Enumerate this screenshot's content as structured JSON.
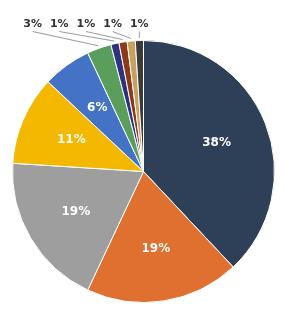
{
  "chart_data": {
    "type": "pie",
    "values": [
      38,
      19,
      19,
      11,
      6,
      3,
      1,
      1,
      1,
      1
    ],
    "value_labels": [
      "38%",
      "19%",
      "19%",
      "11%",
      "6%",
      "3%",
      "1%",
      "1%",
      "1%",
      "1%"
    ],
    "colors": [
      "#2E4057",
      "#E07030",
      "#9E9E9E",
      "#F5B800",
      "#4472C4",
      "#5B9E5B",
      "#2E3380",
      "#8B3A1A",
      "#C8A060",
      "#3A3A3A"
    ],
    "data_labels": true
  }
}
